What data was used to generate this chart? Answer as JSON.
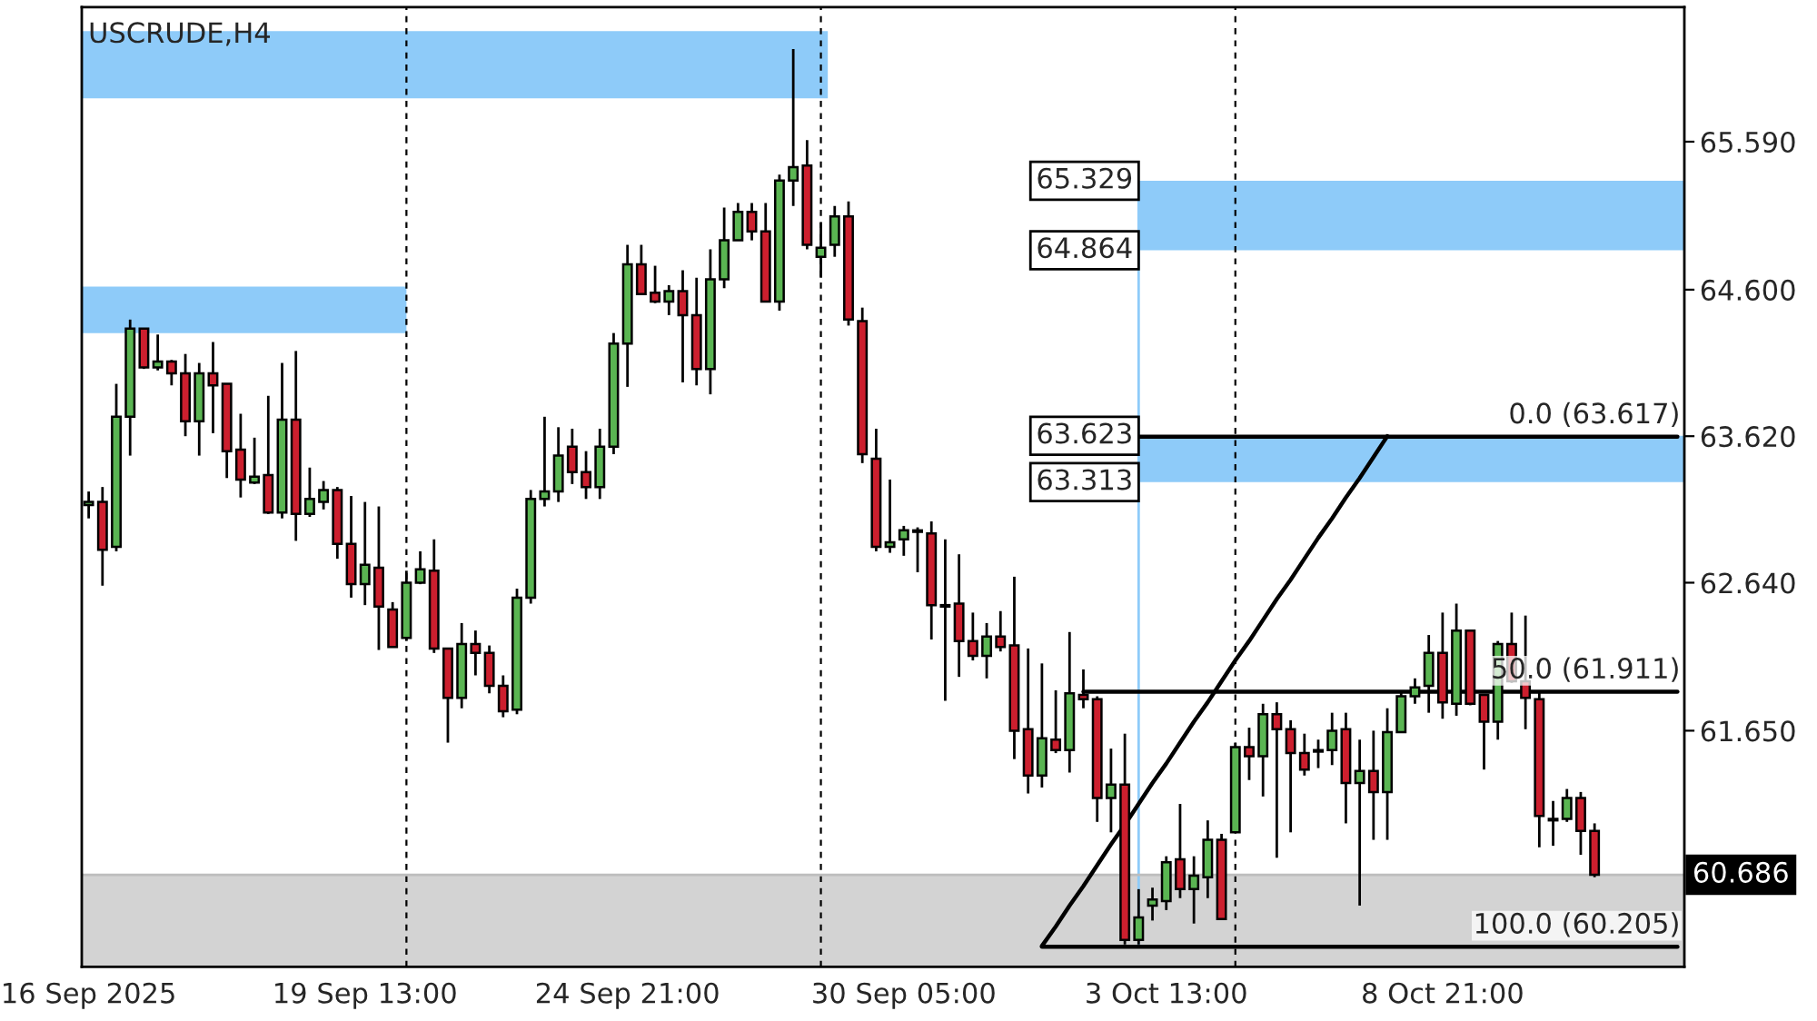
{
  "chart_data": {
    "type": "candlestick",
    "title": "USCRUDE,H4",
    "categories": [
      "16 Sep 2025",
      null,
      null,
      null,
      null,
      null,
      null,
      null,
      null,
      null,
      null,
      null,
      null,
      null,
      null,
      null,
      null,
      null,
      null,
      null,
      "19 Sep 13:00",
      null,
      null,
      null,
      null,
      null,
      null,
      null,
      null,
      null,
      null,
      null,
      null,
      null,
      null,
      null,
      null,
      null,
      null,
      "24 Sep 21:00",
      null,
      null,
      null,
      null,
      null,
      null,
      null,
      null,
      null,
      null,
      null,
      null,
      null,
      null,
      null,
      null,
      null,
      null,
      null,
      "30 Sep 05:00",
      null,
      null,
      null,
      null,
      null,
      null,
      null,
      null,
      null,
      null,
      null,
      null,
      null,
      null,
      null,
      null,
      null,
      null,
      "3 Oct 13:00",
      null,
      null,
      null,
      null,
      null,
      null,
      null,
      null,
      null,
      null,
      null,
      null,
      null,
      null,
      null,
      null,
      null,
      null,
      null,
      "8 Oct 21:00",
      null,
      null,
      null,
      null,
      null,
      null,
      null,
      null,
      null,
      null,
      null,
      null,
      null,
      null,
      null,
      null,
      null
    ],
    "ohlc": [
      [
        63.16,
        63.25,
        63.07,
        63.18
      ],
      [
        63.18,
        63.28,
        62.62,
        62.86
      ],
      [
        62.88,
        63.97,
        62.85,
        63.75
      ],
      [
        63.75,
        64.4,
        63.49,
        64.34
      ],
      [
        64.34,
        64.34,
        64.07,
        64.08
      ],
      [
        64.08,
        64.3,
        64.06,
        64.12
      ],
      [
        64.12,
        64.13,
        63.96,
        64.04
      ],
      [
        64.04,
        64.17,
        63.62,
        63.72
      ],
      [
        63.72,
        64.11,
        63.49,
        64.04
      ],
      [
        64.04,
        64.25,
        63.64,
        63.96
      ],
      [
        63.97,
        63.97,
        63.34,
        63.52
      ],
      [
        63.53,
        63.77,
        63.21,
        63.33
      ],
      [
        63.31,
        63.61,
        63.3,
        63.35
      ],
      [
        63.36,
        63.89,
        63.1,
        63.11
      ],
      [
        63.11,
        64.11,
        63.07,
        63.73
      ],
      [
        63.73,
        64.19,
        62.92,
        63.1
      ],
      [
        63.1,
        63.41,
        63.08,
        63.2
      ],
      [
        63.18,
        63.32,
        63.13,
        63.26
      ],
      [
        63.26,
        63.28,
        62.8,
        62.9
      ],
      [
        62.9,
        63.22,
        62.54,
        62.63
      ],
      [
        62.63,
        63.18,
        62.49,
        62.76
      ],
      [
        62.74,
        63.15,
        62.19,
        62.48
      ],
      [
        62.46,
        62.51,
        62.21,
        62.21
      ],
      [
        62.27,
        62.72,
        62.25,
        62.64
      ],
      [
        62.64,
        62.85,
        62.63,
        62.73
      ],
      [
        62.72,
        62.93,
        62.17,
        62.2
      ],
      [
        62.2,
        62.2,
        61.57,
        61.87
      ],
      [
        61.87,
        62.37,
        61.8,
        62.23
      ],
      [
        62.23,
        62.32,
        62.02,
        62.17
      ],
      [
        62.17,
        62.22,
        61.9,
        61.95
      ],
      [
        61.95,
        62.02,
        61.74,
        61.78
      ],
      [
        61.79,
        62.6,
        61.76,
        62.54
      ],
      [
        62.54,
        63.26,
        62.5,
        63.2
      ],
      [
        63.2,
        63.75,
        63.15,
        63.25
      ],
      [
        63.25,
        63.68,
        63.18,
        63.49
      ],
      [
        63.55,
        63.67,
        63.3,
        63.38
      ],
      [
        63.38,
        63.52,
        63.2,
        63.28
      ],
      [
        63.28,
        63.67,
        63.2,
        63.55
      ],
      [
        63.55,
        64.31,
        63.5,
        64.24
      ],
      [
        64.24,
        64.9,
        63.95,
        64.77
      ],
      [
        64.77,
        64.9,
        64.57,
        64.57
      ],
      [
        64.58,
        64.76,
        64.51,
        64.52
      ],
      [
        64.52,
        64.63,
        64.43,
        64.59
      ],
      [
        64.59,
        64.73,
        63.98,
        64.43
      ],
      [
        64.43,
        64.68,
        63.96,
        64.07
      ],
      [
        64.07,
        64.87,
        63.9,
        64.67
      ],
      [
        64.67,
        65.15,
        64.61,
        64.93
      ],
      [
        64.93,
        65.18,
        64.93,
        65.12
      ],
      [
        65.12,
        65.18,
        64.93,
        64.99
      ],
      [
        64.99,
        65.18,
        64.52,
        64.52
      ],
      [
        64.52,
        65.37,
        64.46,
        65.33
      ],
      [
        65.33,
        66.21,
        65.16,
        65.42
      ],
      [
        65.43,
        65.6,
        64.87,
        64.9
      ],
      [
        64.82,
        65.05,
        64.68,
        64.88
      ],
      [
        64.9,
        65.16,
        64.82,
        65.09
      ],
      [
        65.09,
        65.19,
        64.36,
        64.4
      ],
      [
        64.39,
        64.48,
        63.44,
        63.5
      ],
      [
        63.47,
        63.67,
        62.85,
        62.88
      ],
      [
        62.88,
        63.33,
        62.84,
        62.91
      ],
      [
        62.93,
        63.02,
        62.82,
        62.99
      ],
      [
        62.99,
        63.01,
        62.71,
        62.98
      ],
      [
        62.97,
        63.05,
        62.26,
        62.49
      ],
      [
        62.49,
        62.93,
        61.85,
        62.48
      ],
      [
        62.5,
        62.83,
        62.01,
        62.25
      ],
      [
        62.25,
        62.44,
        62.12,
        62.15
      ],
      [
        62.15,
        62.37,
        62.0,
        62.28
      ],
      [
        62.28,
        62.45,
        62.18,
        62.21
      ],
      [
        62.22,
        62.68,
        61.46,
        61.65
      ],
      [
        61.66,
        62.2,
        61.23,
        61.35
      ],
      [
        61.35,
        62.1,
        61.27,
        61.6
      ],
      [
        61.59,
        61.92,
        61.5,
        61.52
      ],
      [
        61.52,
        62.31,
        61.37,
        61.9
      ],
      [
        61.89,
        62.06,
        61.8,
        61.86
      ],
      [
        61.86,
        61.88,
        61.04,
        61.2
      ],
      [
        61.2,
        61.53,
        60.97,
        61.29
      ],
      [
        61.29,
        61.63,
        60.22,
        60.25
      ],
      [
        60.25,
        60.59,
        60.22,
        60.4
      ],
      [
        60.48,
        60.6,
        60.38,
        60.52
      ],
      [
        60.51,
        60.81,
        60.45,
        60.77
      ],
      [
        60.79,
        61.16,
        60.53,
        60.59
      ],
      [
        60.59,
        60.81,
        60.36,
        60.68
      ],
      [
        60.67,
        61.05,
        60.53,
        60.92
      ],
      [
        60.92,
        60.96,
        60.39,
        60.39
      ],
      [
        60.97,
        61.57,
        60.97,
        61.54
      ],
      [
        61.54,
        61.67,
        61.32,
        61.48
      ],
      [
        61.48,
        61.83,
        61.21,
        61.76
      ],
      [
        61.76,
        61.84,
        60.8,
        61.66
      ],
      [
        61.66,
        61.72,
        60.97,
        61.5
      ],
      [
        61.5,
        61.63,
        61.35,
        61.39
      ],
      [
        61.52,
        61.59,
        61.4,
        61.51
      ],
      [
        61.52,
        61.77,
        61.42,
        61.65
      ],
      [
        61.66,
        61.77,
        61.03,
        61.3
      ],
      [
        61.3,
        61.59,
        60.48,
        61.38
      ],
      [
        61.38,
        61.65,
        60.92,
        61.24
      ],
      [
        61.24,
        61.8,
        60.92,
        61.64
      ],
      [
        61.64,
        61.91,
        61.64,
        61.88
      ],
      [
        61.88,
        62.0,
        61.83,
        61.94
      ],
      [
        61.95,
        62.29,
        61.77,
        62.17
      ],
      [
        62.17,
        62.44,
        61.73,
        61.84
      ],
      [
        61.83,
        62.5,
        61.75,
        62.32
      ],
      [
        62.32,
        62.32,
        61.82,
        61.83
      ],
      [
        61.89,
        61.89,
        61.39,
        61.71
      ],
      [
        61.71,
        62.25,
        61.59,
        62.23
      ],
      [
        62.23,
        62.44,
        61.97,
        61.98
      ],
      [
        61.98,
        62.42,
        61.66,
        61.87
      ],
      [
        61.86,
        61.92,
        60.87,
        61.08
      ],
      [
        61.06,
        61.18,
        60.88,
        61.05
      ],
      [
        61.06,
        61.26,
        61.04,
        61.2
      ],
      [
        61.2,
        61.24,
        60.82,
        60.98
      ],
      [
        60.98,
        61.03,
        60.67,
        60.686
      ],
      null,
      null,
      null,
      null,
      null,
      null
    ],
    "colors": [
      "#5ab552",
      "#cc1f2e",
      "#5ab552",
      "#5ab552",
      "#cc1f2e",
      "#5ab552",
      "#cc1f2e",
      "#cc1f2e",
      "#5ab552",
      "#cc1f2e",
      "#cc1f2e",
      "#cc1f2e",
      "#5ab552",
      "#cc1f2e",
      "#5ab552",
      "#cc1f2e",
      "#5ab552",
      "#5ab552",
      "#cc1f2e",
      "#cc1f2e",
      "#5ab552",
      "#cc1f2e",
      "#cc1f2e",
      "#5ab552",
      "#5ab552",
      "#cc1f2e",
      "#cc1f2e",
      "#5ab552",
      "#cc1f2e",
      "#cc1f2e",
      "#cc1f2e",
      "#5ab552",
      "#5ab552",
      "#5ab552",
      "#5ab552",
      "#cc1f2e",
      "#cc1f2e",
      "#5ab552",
      "#5ab552",
      "#5ab552",
      "#cc1f2e",
      "#cc1f2e",
      "#5ab552",
      "#cc1f2e",
      "#cc1f2e",
      "#5ab552",
      "#5ab552",
      "#5ab552",
      "#cc1f2e",
      "#cc1f2e",
      "#5ab552",
      "#5ab552",
      "#cc1f2e",
      "#5ab552",
      "#5ab552",
      "#cc1f2e",
      "#cc1f2e",
      "#cc1f2e",
      "#5ab552",
      "#5ab552",
      "#cc1f2e",
      "#cc1f2e",
      "#cc1f2e",
      "#cc1f2e",
      "#cc1f2e",
      "#5ab552",
      "#cc1f2e",
      "#cc1f2e",
      "#cc1f2e",
      "#5ab552",
      "#cc1f2e",
      "#5ab552",
      "#cc1f2e",
      "#cc1f2e",
      "#5ab552",
      "#cc1f2e",
      "#5ab552",
      "#5ab552",
      "#5ab552",
      "#cc1f2e",
      "#5ab552",
      "#5ab552",
      "#cc1f2e",
      "#5ab552",
      "#cc1f2e",
      "#5ab552",
      "#cc1f2e",
      "#cc1f2e",
      "#cc1f2e",
      "#cc1f2e",
      "#5ab552",
      "#cc1f2e",
      "#5ab552",
      "#cc1f2e",
      "#5ab552",
      "#5ab552",
      "#5ab552",
      "#5ab552",
      "#cc1f2e",
      "#5ab552",
      "#cc1f2e",
      "#cc1f2e",
      "#5ab552",
      "#cc1f2e",
      "#cc1f2e",
      "#cc1f2e",
      "#cc1f2e",
      "#5ab552",
      "#cc1f2e",
      "#cc1f2e",
      null,
      null,
      null,
      null,
      null,
      null
    ],
    "series": [
      {
        "type": "line",
        "color": "#000000",
        "name": "0.0 (63.617)",
        "values": [
          null,
          null,
          null,
          null,
          null,
          null,
          null,
          null,
          null,
          null,
          null,
          null,
          null,
          null,
          null,
          null,
          null,
          null,
          null,
          null,
          null,
          null,
          null,
          null,
          null,
          null,
          null,
          null,
          null,
          null,
          null,
          null,
          null,
          null,
          null,
          null,
          null,
          null,
          null,
          null,
          null,
          null,
          null,
          null,
          null,
          null,
          null,
          null,
          null,
          null,
          null,
          null,
          null,
          null,
          null,
          null,
          null,
          null,
          null,
          null,
          null,
          null,
          null,
          null,
          null,
          null,
          null,
          null,
          null,
          null,
          null,
          null,
          null,
          null,
          null,
          null,
          63.617,
          63.617,
          63.617,
          63.617,
          63.617,
          63.617,
          63.617,
          63.617,
          63.617,
          63.617,
          63.617,
          63.617,
          63.617,
          63.617,
          63.617,
          63.617,
          63.617,
          63.617,
          63.617,
          63.617,
          63.617,
          63.617,
          63.617,
          63.617,
          63.617,
          63.617,
          63.617,
          63.617,
          63.617,
          63.617,
          63.617,
          63.617,
          63.617,
          63.617,
          63.617,
          63.617,
          63.617,
          63.617,
          63.617,
          63.617
        ]
      },
      {
        "type": "line",
        "color": "#000000",
        "name": "50.0 (61.911)",
        "values": [
          null,
          null,
          null,
          null,
          null,
          null,
          null,
          null,
          null,
          null,
          null,
          null,
          null,
          null,
          null,
          null,
          null,
          null,
          null,
          null,
          null,
          null,
          null,
          null,
          null,
          null,
          null,
          null,
          null,
          null,
          null,
          null,
          null,
          null,
          null,
          null,
          null,
          null,
          null,
          null,
          null,
          null,
          null,
          null,
          null,
          null,
          null,
          null,
          null,
          null,
          null,
          null,
          null,
          null,
          null,
          null,
          null,
          null,
          null,
          null,
          null,
          null,
          null,
          null,
          null,
          null,
          null,
          null,
          null,
          null,
          null,
          null,
          61.911,
          61.911,
          61.911,
          61.911,
          61.911,
          61.911,
          61.911,
          61.911,
          61.911,
          61.911,
          61.911,
          61.911,
          61.911,
          61.911,
          61.911,
          61.911,
          61.911,
          61.911,
          61.911,
          61.911,
          61.911,
          61.911,
          61.911,
          61.911,
          61.911,
          61.911,
          61.911,
          61.911,
          61.911,
          61.911,
          61.911,
          61.911,
          61.911,
          61.911,
          61.911,
          61.911,
          61.911,
          61.911,
          61.911,
          61.911,
          61.911,
          61.911,
          61.911,
          61.911
        ]
      },
      {
        "type": "line",
        "color": "#000000",
        "name": "100.0 (60.205)",
        "values": [
          null,
          null,
          null,
          null,
          null,
          null,
          null,
          null,
          null,
          null,
          null,
          null,
          null,
          null,
          null,
          null,
          null,
          null,
          null,
          null,
          null,
          null,
          null,
          null,
          null,
          null,
          null,
          null,
          null,
          null,
          null,
          null,
          null,
          null,
          null,
          null,
          null,
          null,
          null,
          null,
          null,
          null,
          null,
          null,
          null,
          null,
          null,
          null,
          null,
          null,
          null,
          null,
          null,
          null,
          null,
          null,
          null,
          null,
          null,
          null,
          null,
          null,
          null,
          null,
          null,
          null,
          null,
          null,
          null,
          60.205,
          60.205,
          60.205,
          60.205,
          60.205,
          60.205,
          60.205,
          60.205,
          60.205,
          60.205,
          60.205,
          60.205,
          60.205,
          60.205,
          60.205,
          60.205,
          60.205,
          60.205,
          60.205,
          60.205,
          60.205,
          60.205,
          60.205,
          60.205,
          60.205,
          60.205,
          60.205,
          60.205,
          60.205,
          60.205,
          60.205,
          60.205,
          60.205,
          60.205,
          60.205,
          60.205,
          60.205,
          60.205,
          60.205,
          60.205,
          60.205,
          60.205,
          60.205,
          60.205,
          60.205,
          60.205,
          60.205
        ]
      },
      {
        "type": "line",
        "color": "#000000",
        "values": [
          null,
          null,
          null,
          null,
          null,
          null,
          null,
          null,
          null,
          null,
          null,
          null,
          null,
          null,
          null,
          null,
          null,
          null,
          null,
          null,
          null,
          null,
          null,
          null,
          null,
          null,
          null,
          null,
          null,
          null,
          null,
          null,
          null,
          null,
          null,
          null,
          null,
          null,
          null,
          null,
          null,
          null,
          null,
          null,
          null,
          null,
          null,
          null,
          null,
          null,
          null,
          null,
          null,
          null,
          null,
          null,
          null,
          null,
          null,
          null,
          null,
          null,
          null,
          null,
          null,
          null,
          null,
          null,
          null,
          60.21,
          60.34,
          60.48,
          60.61,
          60.75,
          60.89,
          61.02,
          61.16,
          61.3,
          61.43,
          61.57,
          61.71,
          61.84,
          61.98,
          62.12,
          62.25,
          62.39,
          62.53,
          62.66,
          62.8,
          62.94,
          63.07,
          63.21,
          63.34,
          63.48,
          63.62,
          null,
          null,
          null,
          null,
          null,
          null,
          null,
          null,
          null,
          null,
          null,
          null,
          null,
          null,
          null,
          null,
          null,
          null,
          null,
          null,
          null
        ]
      }
    ],
    "bands": [
      {
        "axis": "y",
        "from": 65.88,
        "to": 66.33,
        "color": "#8ecbf9"
      },
      {
        "axis": "y",
        "from": 64.31,
        "to": 64.62,
        "color": "#8ecbf9"
      },
      {
        "axis": "y",
        "from": 64.864,
        "to": 65.329,
        "color": "#8ecbf9"
      },
      {
        "axis": "y",
        "from": 63.313,
        "to": 63.623,
        "color": "#8ecbf9"
      },
      {
        "axis": "y",
        "from": 60.07,
        "to": 60.69,
        "color": "#d3d3d3"
      }
    ],
    "ref_lines": [
      {
        "axis": "y",
        "value": 60.686,
        "label": "60.686",
        "color": "#bdbdbd"
      }
    ],
    "annotations": [
      "65.329",
      "64.864",
      "63.623",
      "63.313"
    ],
    "ylim": [
      60.07,
      66.49
    ],
    "yticks": [
      {
        "value": 61.65,
        "label": "61.650"
      },
      {
        "value": 62.64,
        "label": "62.640"
      },
      {
        "value": 63.62,
        "label": "63.620"
      },
      {
        "value": 64.6,
        "label": "64.600"
      },
      {
        "value": 65.59,
        "label": "65.590"
      }
    ],
    "grid": false,
    "legend": false
  }
}
